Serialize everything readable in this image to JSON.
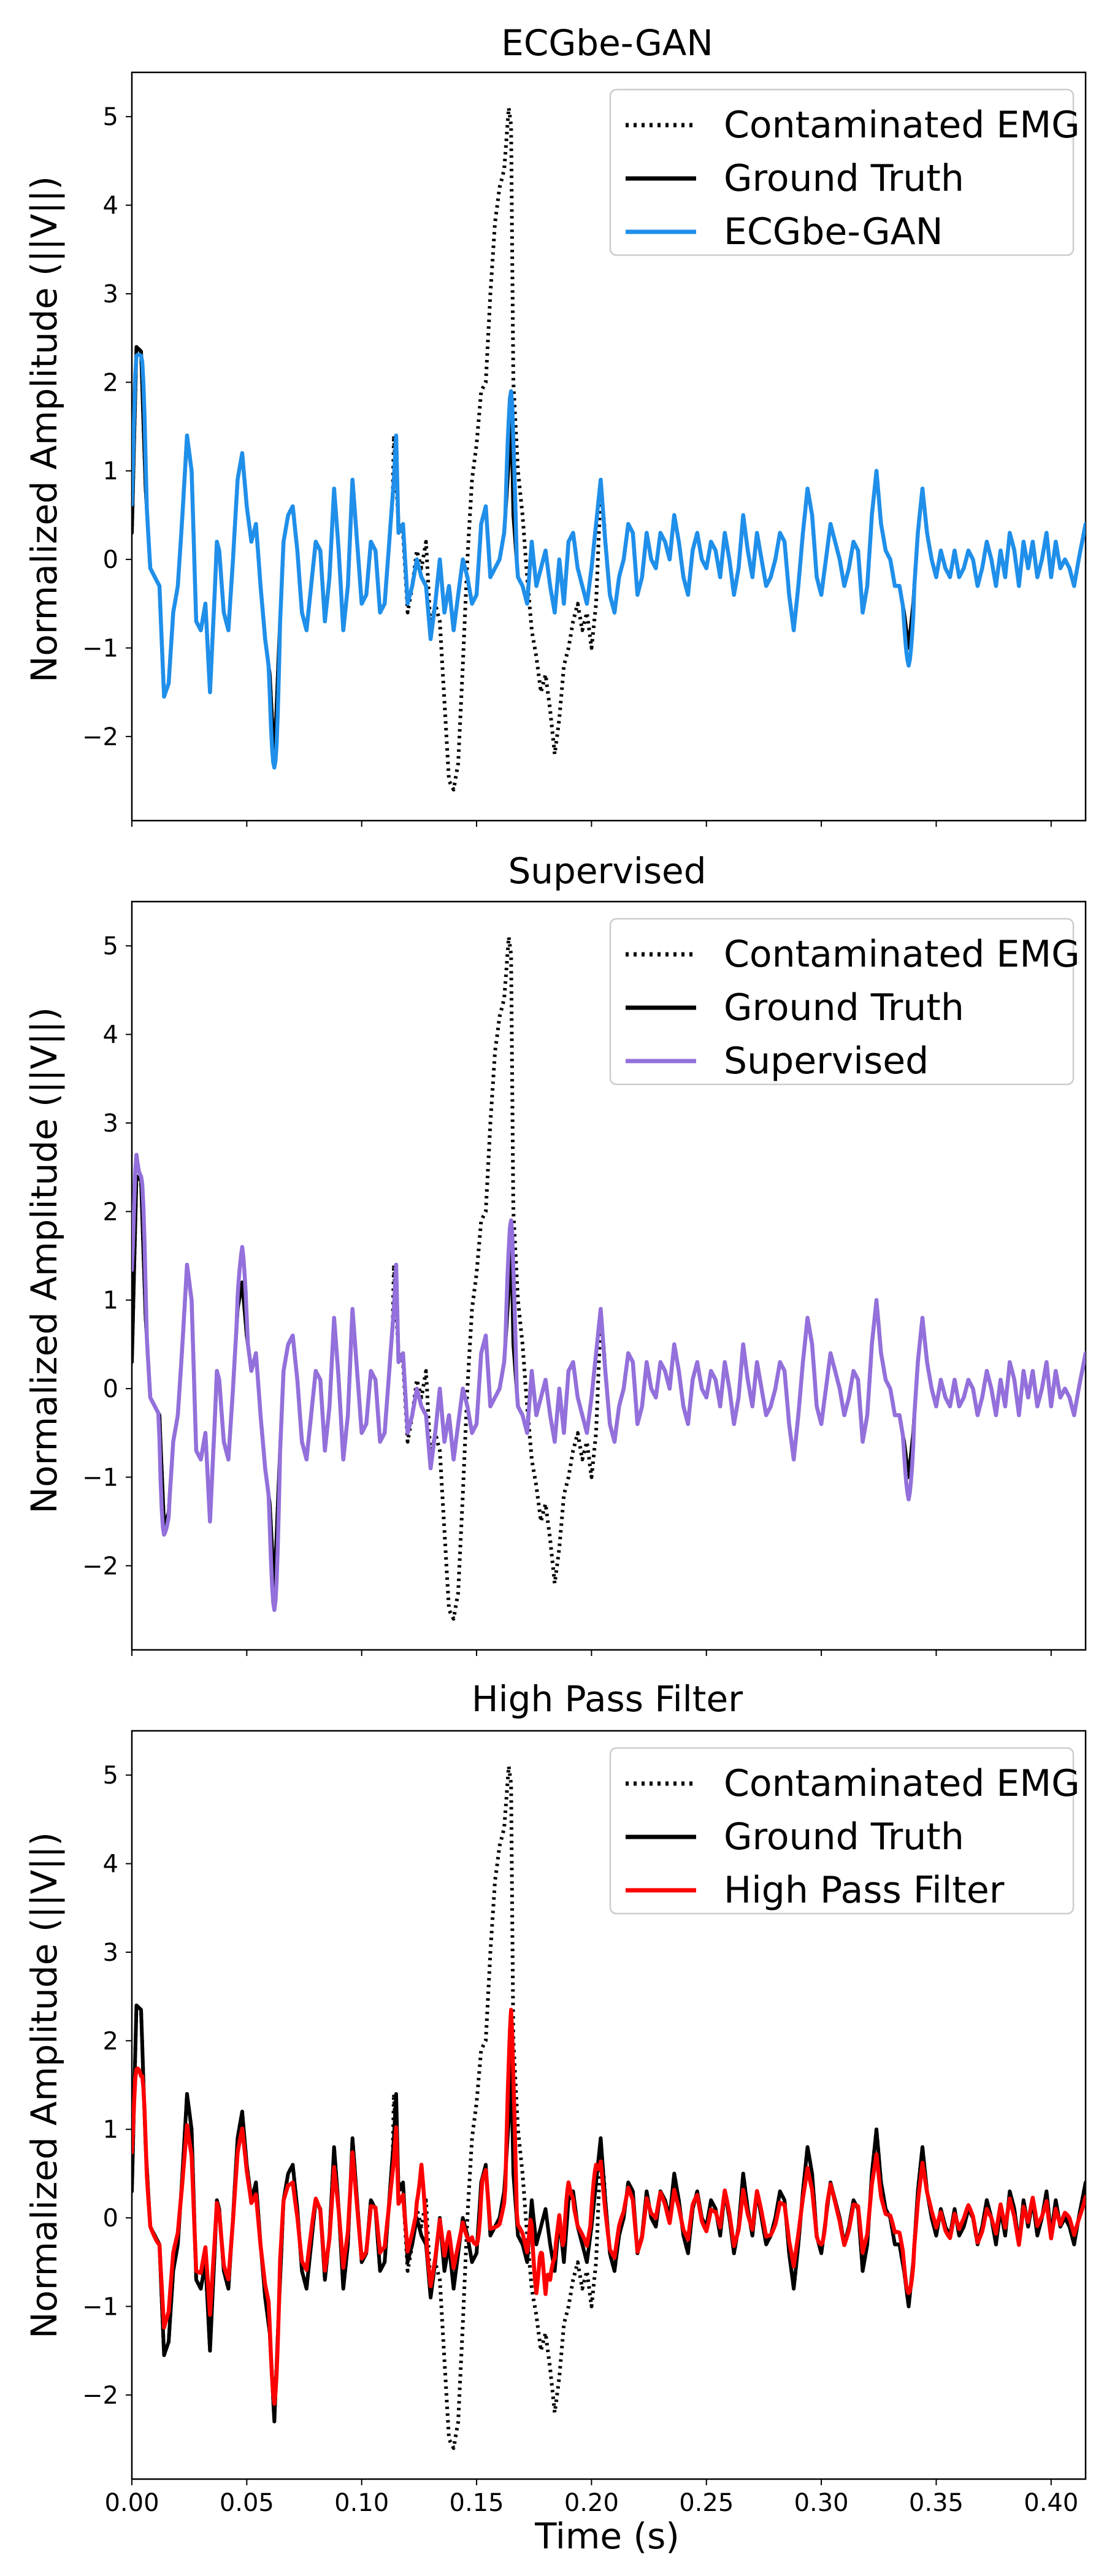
{
  "x_axis_label": "Time (s)",
  "chart_data": [
    {
      "type": "line",
      "title": "ECGbe-GAN",
      "ylabel": "Normalized Amplitude (||V||)",
      "xlabel": "",
      "xlim": [
        0,
        0.415
      ],
      "ylim": [
        -2.95,
        5.5
      ],
      "grid": false,
      "legend_position": "top-right",
      "x_ticks": [
        "0.00",
        "0.05",
        "0.10",
        "0.15",
        "0.20",
        "0.25",
        "0.30",
        "0.35",
        "0.40"
      ],
      "y_ticks": [
        "−2",
        "−1",
        "0",
        "1",
        "2",
        "3",
        "4",
        "5"
      ],
      "series": [
        {
          "name": "Contaminated EMG",
          "role": "emg",
          "color": "#000000",
          "style": "dotted"
        },
        {
          "name": "Ground Truth",
          "role": "truth",
          "color": "#000000",
          "style": "solid"
        },
        {
          "name": "ECGbe-GAN",
          "role": "model",
          "color": "#1f8fea",
          "style": "solid",
          "model_id": 0
        }
      ]
    },
    {
      "type": "line",
      "title": "Supervised",
      "ylabel": "Normalized Amplitude (||V||)",
      "xlabel": "",
      "xlim": [
        0,
        0.415
      ],
      "ylim": [
        -2.95,
        5.5
      ],
      "grid": false,
      "legend_position": "top-right",
      "x_ticks": [
        "0.00",
        "0.05",
        "0.10",
        "0.15",
        "0.20",
        "0.25",
        "0.30",
        "0.35",
        "0.40"
      ],
      "y_ticks": [
        "−2",
        "−1",
        "0",
        "1",
        "2",
        "3",
        "4",
        "5"
      ],
      "series": [
        {
          "name": "Contaminated EMG",
          "role": "emg",
          "color": "#000000",
          "style": "dotted"
        },
        {
          "name": "Ground Truth",
          "role": "truth",
          "color": "#000000",
          "style": "solid"
        },
        {
          "name": "Supervised",
          "role": "model",
          "color": "#9370db",
          "style": "solid",
          "model_id": 1
        }
      ]
    },
    {
      "type": "line",
      "title": "High Pass Filter",
      "ylabel": "Normalized Amplitude (||V||)",
      "xlabel": "Time (s)",
      "xlim": [
        0,
        0.415
      ],
      "ylim": [
        -2.95,
        5.5
      ],
      "grid": false,
      "legend_position": "top-right",
      "x_ticks": [
        "0.00",
        "0.05",
        "0.10",
        "0.15",
        "0.20",
        "0.25",
        "0.30",
        "0.35",
        "0.40"
      ],
      "y_ticks": [
        "−2",
        "−1",
        "0",
        "1",
        "2",
        "3",
        "4",
        "5"
      ],
      "series": [
        {
          "name": "Contaminated EMG",
          "role": "emg",
          "color": "#000000",
          "style": "dotted"
        },
        {
          "name": "Ground Truth",
          "role": "truth",
          "color": "#000000",
          "style": "solid"
        },
        {
          "name": "High Pass Filter",
          "role": "model",
          "color": "#ff0000",
          "style": "solid",
          "model_id": 2
        }
      ]
    }
  ],
  "truth_points": [
    [
      0,
      0.3
    ],
    [
      0.002,
      2.4
    ],
    [
      0.004,
      2.35
    ],
    [
      0.006,
      0.8
    ],
    [
      0.008,
      -0.1
    ],
    [
      0.01,
      -0.2
    ],
    [
      0.012,
      -0.3
    ],
    [
      0.014,
      -1.55
    ],
    [
      0.016,
      -1.4
    ],
    [
      0.018,
      -0.6
    ],
    [
      0.02,
      -0.3
    ],
    [
      0.022,
      0.5
    ],
    [
      0.024,
      1.4
    ],
    [
      0.026,
      1.0
    ],
    [
      0.028,
      -0.7
    ],
    [
      0.03,
      -0.8
    ],
    [
      0.032,
      -0.5
    ],
    [
      0.034,
      -1.5
    ],
    [
      0.036,
      -0.4
    ],
    [
      0.037,
      0.2
    ],
    [
      0.038,
      0.1
    ],
    [
      0.04,
      -0.6
    ],
    [
      0.042,
      -0.8
    ],
    [
      0.044,
      0.0
    ],
    [
      0.046,
      0.9
    ],
    [
      0.048,
      1.2
    ],
    [
      0.05,
      0.6
    ],
    [
      0.052,
      0.2
    ],
    [
      0.054,
      0.4
    ],
    [
      0.056,
      -0.3
    ],
    [
      0.058,
      -0.9
    ],
    [
      0.06,
      -1.3
    ],
    [
      0.062,
      -2.3
    ],
    [
      0.064,
      -1.0
    ],
    [
      0.066,
      0.2
    ],
    [
      0.068,
      0.5
    ],
    [
      0.07,
      0.6
    ],
    [
      0.072,
      0.1
    ],
    [
      0.074,
      -0.6
    ],
    [
      0.076,
      -0.8
    ],
    [
      0.078,
      -0.3
    ],
    [
      0.08,
      0.2
    ],
    [
      0.082,
      0.1
    ],
    [
      0.084,
      -0.7
    ],
    [
      0.086,
      -0.2
    ],
    [
      0.088,
      0.8
    ],
    [
      0.09,
      0.1
    ],
    [
      0.092,
      -0.8
    ],
    [
      0.094,
      -0.3
    ],
    [
      0.096,
      0.9
    ],
    [
      0.098,
      0.2
    ],
    [
      0.1,
      -0.5
    ],
    [
      0.102,
      -0.4
    ],
    [
      0.104,
      0.2
    ],
    [
      0.106,
      0.1
    ],
    [
      0.108,
      -0.6
    ],
    [
      0.11,
      -0.5
    ],
    [
      0.112,
      0.2
    ],
    [
      0.114,
      0.9
    ],
    [
      0.115,
      1.4
    ],
    [
      0.116,
      0.3
    ],
    [
      0.118,
      0.4
    ],
    [
      0.12,
      -0.5
    ],
    [
      0.122,
      -0.3
    ],
    [
      0.124,
      0.0
    ],
    [
      0.126,
      -0.2
    ],
    [
      0.128,
      -0.3
    ],
    [
      0.13,
      -0.9
    ],
    [
      0.132,
      -0.5
    ],
    [
      0.134,
      0.0
    ],
    [
      0.136,
      -0.6
    ],
    [
      0.138,
      -0.3
    ],
    [
      0.14,
      -0.8
    ],
    [
      0.142,
      -0.4
    ],
    [
      0.144,
      0.0
    ],
    [
      0.146,
      -0.2
    ],
    [
      0.148,
      -0.5
    ],
    [
      0.15,
      -0.4
    ],
    [
      0.152,
      0.4
    ],
    [
      0.154,
      0.6
    ],
    [
      0.156,
      -0.2
    ],
    [
      0.158,
      -0.1
    ],
    [
      0.16,
      0.0
    ],
    [
      0.162,
      0.3
    ],
    [
      0.164,
      1.1
    ],
    [
      0.165,
      1.9
    ],
    [
      0.166,
      0.5
    ],
    [
      0.168,
      -0.2
    ],
    [
      0.17,
      -0.3
    ],
    [
      0.172,
      -0.5
    ],
    [
      0.174,
      0.2
    ],
    [
      0.176,
      -0.3
    ],
    [
      0.178,
      -0.1
    ],
    [
      0.18,
      0.1
    ],
    [
      0.182,
      -0.3
    ],
    [
      0.184,
      -0.6
    ],
    [
      0.186,
      0.0
    ],
    [
      0.188,
      -0.5
    ],
    [
      0.19,
      0.2
    ],
    [
      0.192,
      0.3
    ],
    [
      0.194,
      -0.1
    ],
    [
      0.196,
      -0.3
    ],
    [
      0.198,
      -0.5
    ],
    [
      0.2,
      -0.1
    ],
    [
      0.202,
      0.4
    ],
    [
      0.204,
      0.9
    ],
    [
      0.206,
      0.2
    ],
    [
      0.208,
      -0.4
    ],
    [
      0.21,
      -0.6
    ],
    [
      0.212,
      -0.2
    ],
    [
      0.214,
      0.0
    ],
    [
      0.216,
      0.4
    ],
    [
      0.218,
      0.3
    ],
    [
      0.22,
      -0.4
    ],
    [
      0.222,
      -0.2
    ],
    [
      0.224,
      0.3
    ],
    [
      0.226,
      0.0
    ],
    [
      0.228,
      -0.1
    ],
    [
      0.23,
      0.3
    ],
    [
      0.232,
      0.2
    ],
    [
      0.234,
      0.0
    ],
    [
      0.236,
      0.5
    ],
    [
      0.238,
      0.2
    ],
    [
      0.24,
      -0.2
    ],
    [
      0.242,
      -0.4
    ],
    [
      0.244,
      0.1
    ],
    [
      0.246,
      0.3
    ],
    [
      0.248,
      0.0
    ],
    [
      0.25,
      -0.1
    ],
    [
      0.252,
      0.2
    ],
    [
      0.254,
      0.1
    ],
    [
      0.256,
      -0.2
    ],
    [
      0.258,
      0.3
    ],
    [
      0.26,
      0.0
    ],
    [
      0.262,
      -0.4
    ],
    [
      0.264,
      -0.1
    ],
    [
      0.266,
      0.5
    ],
    [
      0.268,
      0.1
    ],
    [
      0.27,
      -0.2
    ],
    [
      0.272,
      0.3
    ],
    [
      0.274,
      0.0
    ],
    [
      0.276,
      -0.3
    ],
    [
      0.278,
      -0.2
    ],
    [
      0.28,
      0.0
    ],
    [
      0.282,
      0.3
    ],
    [
      0.284,
      0.2
    ],
    [
      0.286,
      -0.4
    ],
    [
      0.288,
      -0.8
    ],
    [
      0.29,
      -0.3
    ],
    [
      0.292,
      0.3
    ],
    [
      0.294,
      0.8
    ],
    [
      0.296,
      0.5
    ],
    [
      0.298,
      -0.2
    ],
    [
      0.3,
      -0.4
    ],
    [
      0.302,
      0.0
    ],
    [
      0.304,
      0.4
    ],
    [
      0.306,
      0.2
    ],
    [
      0.308,
      0.0
    ],
    [
      0.31,
      -0.3
    ],
    [
      0.312,
      -0.1
    ],
    [
      0.314,
      0.2
    ],
    [
      0.316,
      0.1
    ],
    [
      0.318,
      -0.6
    ],
    [
      0.32,
      -0.3
    ],
    [
      0.322,
      0.5
    ],
    [
      0.324,
      1.0
    ],
    [
      0.326,
      0.4
    ],
    [
      0.328,
      0.1
    ],
    [
      0.33,
      0.0
    ],
    [
      0.332,
      -0.3
    ],
    [
      0.334,
      -0.3
    ],
    [
      0.336,
      -0.6
    ],
    [
      0.338,
      -1.0
    ],
    [
      0.34,
      -0.5
    ],
    [
      0.342,
      0.3
    ],
    [
      0.344,
      0.8
    ],
    [
      0.346,
      0.3
    ],
    [
      0.348,
      0.0
    ],
    [
      0.35,
      -0.2
    ],
    [
      0.352,
      0.1
    ],
    [
      0.354,
      -0.1
    ],
    [
      0.356,
      -0.2
    ],
    [
      0.358,
      0.1
    ],
    [
      0.36,
      -0.2
    ],
    [
      0.362,
      -0.1
    ],
    [
      0.364,
      0.1
    ],
    [
      0.366,
      0.0
    ],
    [
      0.368,
      -0.3
    ],
    [
      0.37,
      -0.1
    ],
    [
      0.372,
      0.2
    ],
    [
      0.374,
      0.0
    ],
    [
      0.376,
      -0.3
    ],
    [
      0.378,
      0.1
    ],
    [
      0.38,
      -0.2
    ],
    [
      0.382,
      0.3
    ],
    [
      0.384,
      0.1
    ],
    [
      0.386,
      -0.3
    ],
    [
      0.388,
      0.2
    ],
    [
      0.39,
      -0.1
    ],
    [
      0.392,
      0.2
    ],
    [
      0.394,
      -0.2
    ],
    [
      0.396,
      0.0
    ],
    [
      0.398,
      0.3
    ],
    [
      0.4,
      -0.2
    ],
    [
      0.402,
      0.2
    ],
    [
      0.404,
      -0.1
    ],
    [
      0.406,
      0.0
    ],
    [
      0.408,
      -0.1
    ],
    [
      0.41,
      -0.3
    ],
    [
      0.412,
      0.0
    ],
    [
      0.415,
      0.4
    ]
  ],
  "emg_points": [
    [
      0.114,
      1.4
    ],
    [
      0.116,
      0.4
    ],
    [
      0.118,
      0.3
    ],
    [
      0.12,
      -0.6
    ],
    [
      0.122,
      -0.3
    ],
    [
      0.124,
      0.1
    ],
    [
      0.126,
      -0.1
    ],
    [
      0.128,
      0.2
    ],
    [
      0.13,
      -0.8
    ],
    [
      0.132,
      -0.5
    ],
    [
      0.134,
      -0.7
    ],
    [
      0.136,
      -1.6
    ],
    [
      0.138,
      -2.5
    ],
    [
      0.14,
      -2.6
    ],
    [
      0.142,
      -2.3
    ],
    [
      0.144,
      -1.2
    ],
    [
      0.146,
      0.0
    ],
    [
      0.148,
      0.9
    ],
    [
      0.15,
      1.3
    ],
    [
      0.152,
      1.9
    ],
    [
      0.154,
      2.0
    ],
    [
      0.156,
      3.0
    ],
    [
      0.158,
      3.8
    ],
    [
      0.16,
      4.2
    ],
    [
      0.162,
      4.4
    ],
    [
      0.164,
      5.1
    ],
    [
      0.165,
      4.9
    ],
    [
      0.166,
      2.0
    ],
    [
      0.168,
      1.0
    ],
    [
      0.17,
      0.5
    ],
    [
      0.172,
      -0.2
    ],
    [
      0.174,
      -0.8
    ],
    [
      0.176,
      -1.1
    ],
    [
      0.178,
      -1.5
    ],
    [
      0.18,
      -1.3
    ],
    [
      0.182,
      -1.7
    ],
    [
      0.184,
      -2.2
    ],
    [
      0.186,
      -1.8
    ],
    [
      0.188,
      -1.2
    ],
    [
      0.19,
      -1.0
    ],
    [
      0.192,
      -0.7
    ],
    [
      0.194,
      -0.5
    ],
    [
      0.196,
      -0.8
    ],
    [
      0.198,
      -0.6
    ],
    [
      0.2,
      -1.0
    ],
    [
      0.202,
      -0.5
    ],
    [
      0.204,
      0.8
    ],
    [
      0.206,
      0.3
    ]
  ],
  "model_deltas": [
    {
      "scale": 1.0,
      "amp": 0.0,
      "kill_emg": true,
      "overrides": [
        [
          0.0,
          0.2
        ],
        [
          0.002,
          2.3
        ],
        [
          0.004,
          2.3
        ],
        [
          0.062,
          -2.35
        ],
        [
          0.165,
          1.9
        ],
        [
          0.338,
          -1.2
        ]
      ]
    },
    {
      "scale": 1.0,
      "amp": 0.0,
      "kill_emg": true,
      "overrides": [
        [
          0.0,
          1.0
        ],
        [
          0.002,
          2.7
        ],
        [
          0.004,
          2.4
        ],
        [
          0.014,
          -1.65
        ],
        [
          0.062,
          -2.5
        ],
        [
          0.048,
          1.6
        ],
        [
          0.165,
          1.9
        ],
        [
          0.338,
          -1.25
        ]
      ]
    },
    {
      "scale": 0.78,
      "amp": 0.25,
      "kill_emg": true,
      "overrides": [
        [
          0.0,
          0.5
        ],
        [
          0.002,
          1.7
        ],
        [
          0.004,
          1.6
        ],
        [
          0.062,
          -2.1
        ],
        [
          0.126,
          0.6
        ],
        [
          0.148,
          -0.2
        ],
        [
          0.15,
          -0.3
        ],
        [
          0.165,
          2.35
        ],
        [
          0.176,
          -0.85
        ],
        [
          0.18,
          -0.9
        ],
        [
          0.182,
          -0.7
        ],
        [
          0.19,
          0.4
        ],
        [
          0.202,
          0.6
        ],
        [
          0.3,
          -0.3
        ],
        [
          0.338,
          -0.85
        ]
      ]
    }
  ]
}
